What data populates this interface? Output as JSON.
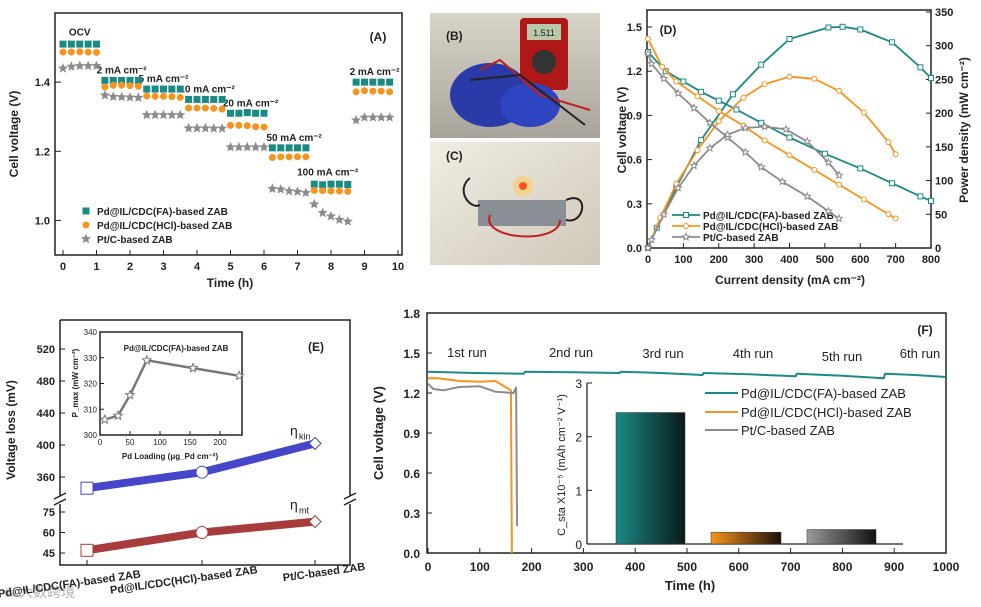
{
  "colors": {
    "fa": "#1a8a85",
    "hcl": "#f7941d",
    "pt": "#8c8c8c",
    "kin": "#4646c8",
    "mt": "#a83c3c"
  },
  "watermark": "© 大数跨境",
  "chart_data": [
    {
      "panel": "(A)",
      "type": "scatter",
      "xlabel": "Time (h)",
      "ylabel": "Cell voltage (V)",
      "xlim": [
        0,
        10
      ],
      "ylim": [
        0.9,
        1.6
      ],
      "xticks": [
        "0",
        "1",
        "2",
        "3",
        "4",
        "5",
        "6",
        "7",
        "8",
        "9",
        "10"
      ],
      "yticks": [
        {
          "v": 1.0,
          "label": "1.0"
        },
        {
          "v": 1.2,
          "label": "1.2"
        },
        {
          "v": 1.4,
          "label": "1.4"
        }
      ],
      "segment_starts": [
        0,
        1.25,
        2.5,
        3.75,
        5,
        6.25,
        7.5,
        8.75
      ],
      "segment_step": 0.25,
      "annotations": [
        {
          "text": "OCV",
          "t": 0.5,
          "v": 1.535
        },
        {
          "text": "2 mA cm⁻²",
          "t": 1.75,
          "v": 1.425
        },
        {
          "text": "5 mA cm⁻²",
          "t": 3.0,
          "v": 1.4
        },
        {
          "text": "10 mA cm⁻²",
          "t": 4.3,
          "v": 1.37
        },
        {
          "text": "20 mA cm⁻²",
          "t": 5.6,
          "v": 1.33
        },
        {
          "text": "50 mA cm⁻²",
          "t": 6.9,
          "v": 1.23
        },
        {
          "text": "100 mA cm⁻²",
          "t": 7.9,
          "v": 1.13
        },
        {
          "text": "2 mA cm⁻²",
          "t": 9.3,
          "v": 1.42
        }
      ],
      "series": [
        {
          "name": "Pd@IL/CDC(FA)-based ZAB",
          "marker": "square",
          "values": [
            [
              1.51,
              1.51,
              1.51,
              1.51,
              1.51
            ],
            [
              1.405,
              1.405,
              1.405,
              1.405,
              1.405
            ],
            [
              1.38,
              1.38,
              1.38,
              1.38,
              1.38
            ],
            [
              1.35,
              1.35,
              1.35,
              1.35,
              1.35
            ],
            [
              1.31,
              1.31,
              1.312,
              1.31,
              1.31
            ],
            [
              1.21,
              1.21,
              1.21,
              1.21,
              1.21
            ],
            [
              1.105,
              1.103,
              1.105,
              1.105,
              1.104
            ],
            [
              1.4,
              1.4,
              1.4,
              1.4,
              1.4
            ]
          ]
        },
        {
          "name": "Pd@IL/CDC(HCl)-based ZAB",
          "marker": "circle",
          "values": [
            [
              1.487,
              1.487,
              1.488,
              1.487,
              1.486
            ],
            [
              1.386,
              1.391,
              1.391,
              1.39,
              1.388
            ],
            [
              1.36,
              1.359,
              1.359,
              1.358,
              1.356
            ],
            [
              1.325,
              1.325,
              1.325,
              1.324,
              1.322
            ],
            [
              1.275,
              1.275,
              1.274,
              1.271,
              1.27
            ],
            [
              1.182,
              1.184,
              1.184,
              1.184,
              1.184
            ],
            [
              1.087,
              1.086,
              1.085,
              1.085,
              1.084
            ],
            [
              1.372,
              1.375,
              1.374,
              1.374,
              1.372
            ]
          ]
        },
        {
          "name": "Pt/C-based ZAB",
          "marker": "star",
          "values": [
            [
              1.44,
              1.445,
              1.447,
              1.447,
              1.447
            ],
            [
              1.362,
              1.358,
              1.357,
              1.356,
              1.355
            ],
            [
              1.305,
              1.305,
              1.305,
              1.305,
              1.305
            ],
            [
              1.267,
              1.267,
              1.267,
              1.266,
              1.266
            ],
            [
              1.212,
              1.212,
              1.212,
              1.212,
              1.212
            ],
            [
              1.092,
              1.09,
              1.085,
              1.083,
              1.08
            ],
            [
              1.047,
              1.022,
              1.012,
              1.002,
              0.997
            ],
            [
              1.29,
              1.298,
              1.298,
              1.298,
              1.298
            ]
          ]
        }
      ]
    },
    {
      "panel": "(D)",
      "type": "line",
      "xlabel": "Current density (mA cm⁻²)",
      "ylabel": "Cell voltage (V)",
      "y2label": "Power density (mW cm⁻²)",
      "xlim": [
        0,
        800
      ],
      "ylim": [
        0,
        1.5
      ],
      "y2lim": [
        0,
        350
      ],
      "xticks": [
        "0",
        "100",
        "200",
        "300",
        "400",
        "500",
        "600",
        "700",
        "800"
      ],
      "yticks": [
        "0.0",
        "0.3",
        "0.6",
        "0.9",
        "1.2",
        "1.5"
      ],
      "y2ticks": [
        "0",
        "50",
        "100",
        "150",
        "200",
        "250",
        "300",
        "350"
      ],
      "series": [
        {
          "name": "Pd@IL/CDC(FA)-based ZAB",
          "marker": "square",
          "voltage": [
            [
              0,
              1.33
            ],
            [
              50,
              1.2
            ],
            [
              100,
              1.13
            ],
            [
              150,
              1.06
            ],
            [
              200,
              1.0
            ],
            [
              250,
              0.94
            ],
            [
              320,
              0.85
            ],
            [
              400,
              0.75
            ],
            [
              500,
              0.64
            ],
            [
              600,
              0.54
            ],
            [
              690,
              0.44
            ],
            [
              770,
              0.35
            ],
            [
              800,
              0.32
            ]
          ],
          "power": [
            [
              0,
              0
            ],
            [
              25,
              30
            ],
            [
              80,
              90
            ],
            [
              150,
              160
            ],
            [
              240,
              228
            ],
            [
              320,
              272
            ],
            [
              400,
              310
            ],
            [
              510,
              327
            ],
            [
              550,
              328
            ],
            [
              600,
              324
            ],
            [
              690,
              305
            ],
            [
              770,
              268
            ],
            [
              800,
              252
            ]
          ]
        },
        {
          "name": "Pd@IL/CDC(HCl)-based ZAB",
          "marker": "circle",
          "voltage": [
            [
              0,
              1.42
            ],
            [
              40,
              1.23
            ],
            [
              80,
              1.13
            ],
            [
              140,
              1.03
            ],
            [
              200,
              0.93
            ],
            [
              270,
              0.83
            ],
            [
              330,
              0.73
            ],
            [
              400,
              0.63
            ],
            [
              470,
              0.53
            ],
            [
              540,
              0.43
            ],
            [
              610,
              0.33
            ],
            [
              680,
              0.23
            ],
            [
              700,
              0.2
            ]
          ],
          "power": [
            [
              0,
              0
            ],
            [
              35,
              45
            ],
            [
              80,
              95
            ],
            [
              140,
              145
            ],
            [
              200,
              188
            ],
            [
              270,
              223
            ],
            [
              330,
              243
            ],
            [
              400,
              254
            ],
            [
              470,
              251
            ],
            [
              540,
              233
            ],
            [
              610,
              201
            ],
            [
              680,
              157
            ],
            [
              700,
              139
            ]
          ]
        },
        {
          "name": "Pt/C-based ZAB",
          "marker": "star",
          "voltage": [
            [
              0,
              1.32
            ],
            [
              10,
              1.25
            ],
            [
              45,
              1.15
            ],
            [
              85,
              1.05
            ],
            [
              130,
              0.95
            ],
            [
              175,
              0.85
            ],
            [
              225,
              0.75
            ],
            [
              275,
              0.65
            ],
            [
              320,
              0.55
            ],
            [
              380,
              0.45
            ],
            [
              450,
              0.35
            ],
            [
              510,
              0.25
            ],
            [
              540,
              0.2
            ]
          ],
          "power": [
            [
              0,
              0
            ],
            [
              10,
              12
            ],
            [
              45,
              50
            ],
            [
              85,
              89
            ],
            [
              130,
              122
            ],
            [
              175,
              148
            ],
            [
              225,
              168
            ],
            [
              275,
              178
            ],
            [
              330,
              180
            ],
            [
              390,
              176
            ],
            [
              450,
              158
            ],
            [
              510,
              127
            ],
            [
              540,
              108
            ]
          ]
        }
      ]
    },
    {
      "panel": "(E)",
      "type": "line",
      "ylabel": "Voltage loss (mV)",
      "categories": [
        "Pd@IL/CDC(FA)-based ZAB",
        "Pd@IL/CDC(HCl)-based ZAB",
        "Pt/C-based ZAB"
      ],
      "upper_yticks": [
        "360",
        "400",
        "440",
        "480",
        "520"
      ],
      "lower_yticks": [
        "45",
        "60",
        "75"
      ],
      "series": [
        {
          "name": "η",
          "sub": "kin",
          "values": [
            346,
            366,
            402
          ]
        },
        {
          "name": "η",
          "sub": "mt",
          "values": [
            47,
            60,
            68
          ]
        }
      ],
      "inset": {
        "title": "Pd@IL/CDC(FA)-based ZAB",
        "xlabel": "Pd Loading (μg_Pd cm⁻²)",
        "ylabel": "P_max (mW cm⁻²)",
        "xticks": [
          "0",
          "50",
          "100",
          "150",
          "200"
        ],
        "yticks": [
          "300",
          "310",
          "320",
          "330",
          "340"
        ],
        "x": [
          8,
          30,
          50,
          78,
          155,
          232
        ],
        "y": [
          306,
          307.5,
          315.5,
          329,
          326,
          323
        ]
      }
    },
    {
      "panel": "(F)",
      "type": "line",
      "xlabel": "Time (h)",
      "ylabel": "Cell voltage (V)",
      "xlim": [
        0,
        1000
      ],
      "ylim": [
        0,
        1.8
      ],
      "xticks": [
        "0",
        "100",
        "200",
        "300",
        "400",
        "500",
        "600",
        "700",
        "800",
        "900",
        "1000"
      ],
      "yticks": [
        "0.0",
        "0.3",
        "0.6",
        "0.9",
        "1.2",
        "1.5",
        "1.8"
      ],
      "runs": [
        "1st run",
        "2nd run",
        "3rd run",
        "4th run",
        "5th run",
        "6th run"
      ],
      "series": [
        {
          "name": "Pd@IL/CDC(FA)-based ZAB",
          "points": [
            [
              0,
              1.36
            ],
            [
              90,
              1.35
            ],
            [
              185,
              1.345
            ],
            [
              187,
              1.36
            ],
            [
              280,
              1.355
            ],
            [
              370,
              1.35
            ],
            [
              372,
              1.36
            ],
            [
              450,
              1.35
            ],
            [
              530,
              1.335
            ],
            [
              532,
              1.35
            ],
            [
              620,
              1.34
            ],
            [
              710,
              1.325
            ],
            [
              712,
              1.345
            ],
            [
              800,
              1.33
            ],
            [
              880,
              1.31
            ],
            [
              882,
              1.345
            ],
            [
              940,
              1.335
            ],
            [
              1000,
              1.32
            ]
          ]
        },
        {
          "name": "Pd@IL/CDC(HCl)-based ZAB",
          "points": [
            [
              0,
              1.31
            ],
            [
              20,
              1.31
            ],
            [
              60,
              1.29
            ],
            [
              100,
              1.285
            ],
            [
              130,
              1.29
            ],
            [
              160,
              1.22
            ],
            [
              162,
              0.0
            ]
          ]
        },
        {
          "name": "Pt/C-based ZAB",
          "points": [
            [
              0,
              1.27
            ],
            [
              10,
              1.23
            ],
            [
              30,
              1.22
            ],
            [
              60,
              1.245
            ],
            [
              100,
              1.25
            ],
            [
              130,
              1.21
            ],
            [
              165,
              1.2
            ],
            [
              170,
              1.24
            ],
            [
              172,
              0.2
            ]
          ]
        }
      ],
      "inset_bar": {
        "ylabel": "C_sta X10⁻⁵ (mAh cm⁻² V⁻¹)",
        "yticks": [
          "0",
          "1",
          "2",
          "3"
        ],
        "values": [
          2.45,
          0.22,
          0.27
        ]
      }
    }
  ],
  "photos": {
    "b_label": "(B)",
    "c_label": "(C)",
    "meter_reading": "1.511"
  }
}
